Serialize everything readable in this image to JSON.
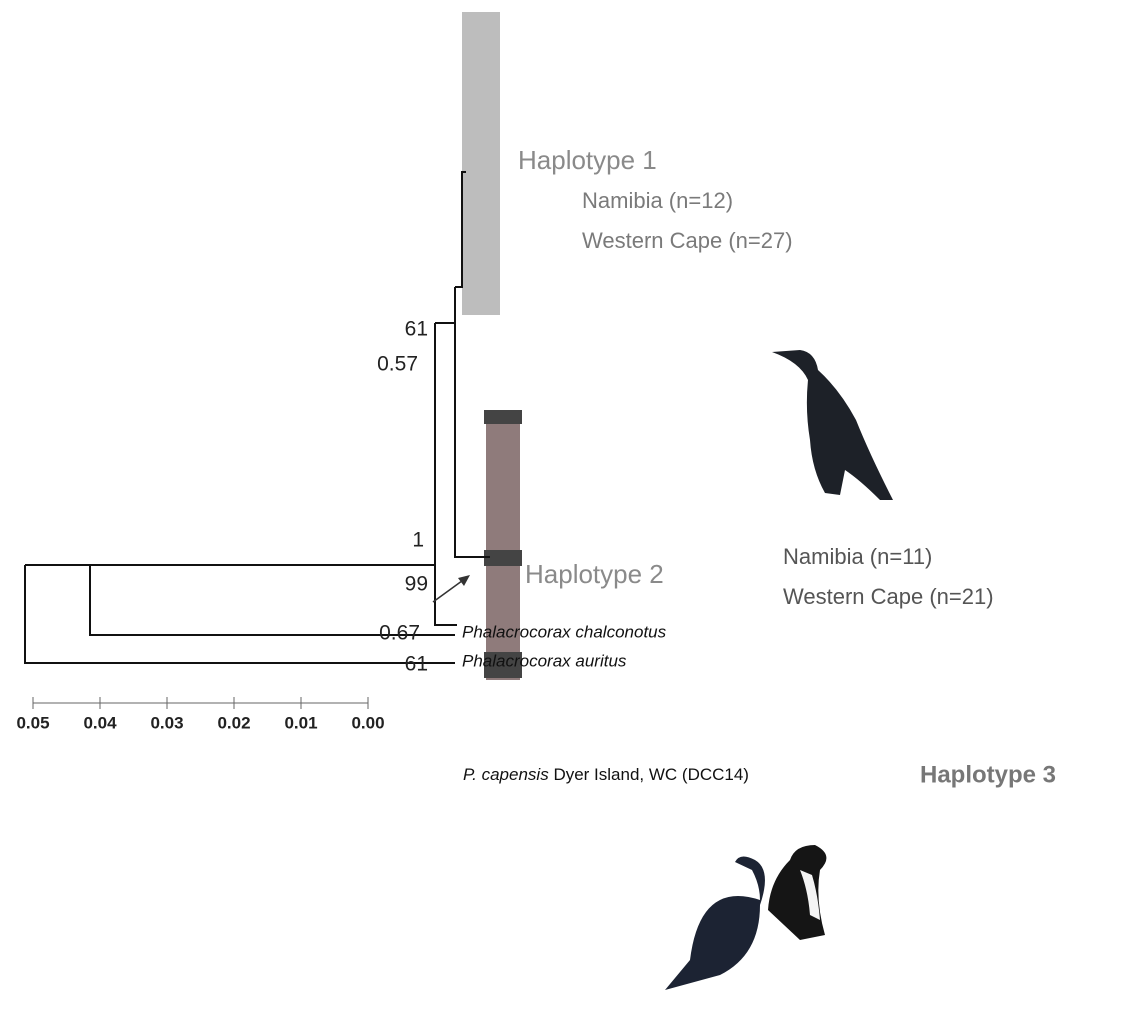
{
  "clades": {
    "haplotype1": {
      "label": "Haplotype 1",
      "locations": [
        "Namibia (n=12)",
        "Western Cape (n=27)"
      ]
    },
    "haplotype2": {
      "label": "Haplotype 2",
      "locations": [
        "Namibia (n=11)",
        "Western Cape (n=21)"
      ]
    },
    "haplotype3": {
      "species": "P. capensis",
      "sample": "Dyer Island, WC (DCC14)",
      "label": "Haplotype 3"
    }
  },
  "node_support": {
    "upper": [
      "61",
      "0.57"
    ],
    "ingroup": [
      "1",
      "99"
    ],
    "haplotype2": [
      "0.67",
      "61"
    ]
  },
  "outgroups": [
    "Phalacrocorax chalconotus",
    "Phalacrocorax auritus"
  ],
  "scale_axis": {
    "xlim": [
      0.05,
      0
    ],
    "xticks": [
      0.05,
      0.04,
      0.03,
      0.02,
      0.01,
      {
        "value": 0,
        "label": "0.00"
      }
    ]
  }
}
